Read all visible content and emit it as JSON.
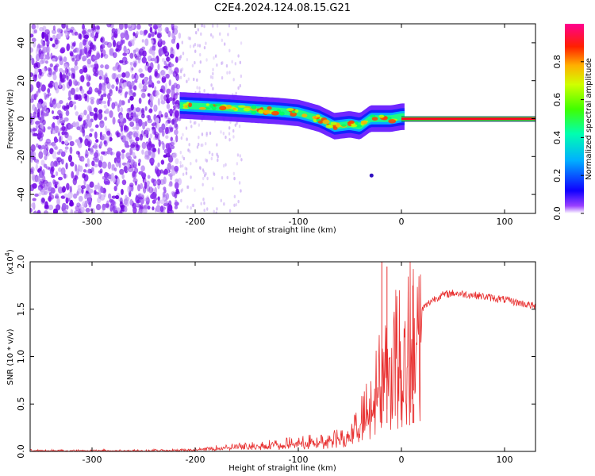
{
  "chart_data": [
    {
      "type": "heatmap",
      "title": "C2E4.2024.124.08.15.G21",
      "xlabel": "Height of straight line (km)",
      "ylabel": "Frequency (Hz)",
      "xlim": [
        -360,
        130
      ],
      "ylim": [
        -50,
        50
      ],
      "xticks": [
        -300,
        -200,
        -100,
        0,
        100
      ],
      "yticks": [
        -40,
        -20,
        0,
        20,
        40
      ],
      "colorbar": {
        "label": "Normalized spectral amplitude",
        "range": [
          0,
          1
        ],
        "ticks": [
          "0.0",
          "0.2",
          "0.4",
          "0.6",
          "0.8"
        ],
        "colors": [
          "#ffffff",
          "#7a00ff",
          "#0000ff",
          "#00c8ff",
          "#00ff60",
          "#c8ff00",
          "#ffa000",
          "#ff0000",
          "#ff0080"
        ]
      },
      "ridge": {
        "x": [
          -215,
          -180,
          -150,
          -120,
          -100,
          -80,
          -65,
          -50,
          -40,
          -30,
          -20,
          -10,
          0,
          130
        ],
        "y": [
          7,
          6,
          5,
          4,
          3,
          0,
          -4,
          -3,
          -4,
          0,
          0,
          0,
          1,
          0
        ]
      },
      "noise_region_x": [
        -360,
        -215
      ],
      "grid": false
    },
    {
      "type": "line",
      "xlabel": "Height of straight line (km)",
      "ylabel": "SNR (10 * v/v)",
      "y_multiplier": "(x10",
      "y_multiplier_exp": "4",
      "y_multiplier_close": ")",
      "xlim": [
        -360,
        130
      ],
      "ylim": [
        0,
        2.0
      ],
      "xticks": [
        -300,
        -200,
        -100,
        0,
        100
      ],
      "yticks": [
        "0.0",
        "0.5",
        "1.0",
        "1.5",
        "2.0"
      ],
      "color": "#e83030",
      "series_envelope": {
        "x": [
          -360,
          -250,
          -200,
          -180,
          -150,
          -100,
          -80,
          -60,
          -50,
          -40,
          -30,
          -20,
          -10,
          0,
          10,
          20,
          30,
          40,
          50,
          70,
          100,
          130
        ],
        "y": [
          0.01,
          0.01,
          0.02,
          0.04,
          0.06,
          0.1,
          0.12,
          0.15,
          0.2,
          0.35,
          0.55,
          0.85,
          1.05,
          1.2,
          1.35,
          1.5,
          1.6,
          1.65,
          1.67,
          1.65,
          1.6,
          1.53
        ]
      },
      "spikes": [
        {
          "x": -19,
          "y": 2.0
        },
        {
          "x": -14,
          "y": 1.95
        },
        {
          "x": 11,
          "y": 1.75
        },
        {
          "x": 12,
          "y": 0.5
        }
      ],
      "grid": false
    }
  ]
}
